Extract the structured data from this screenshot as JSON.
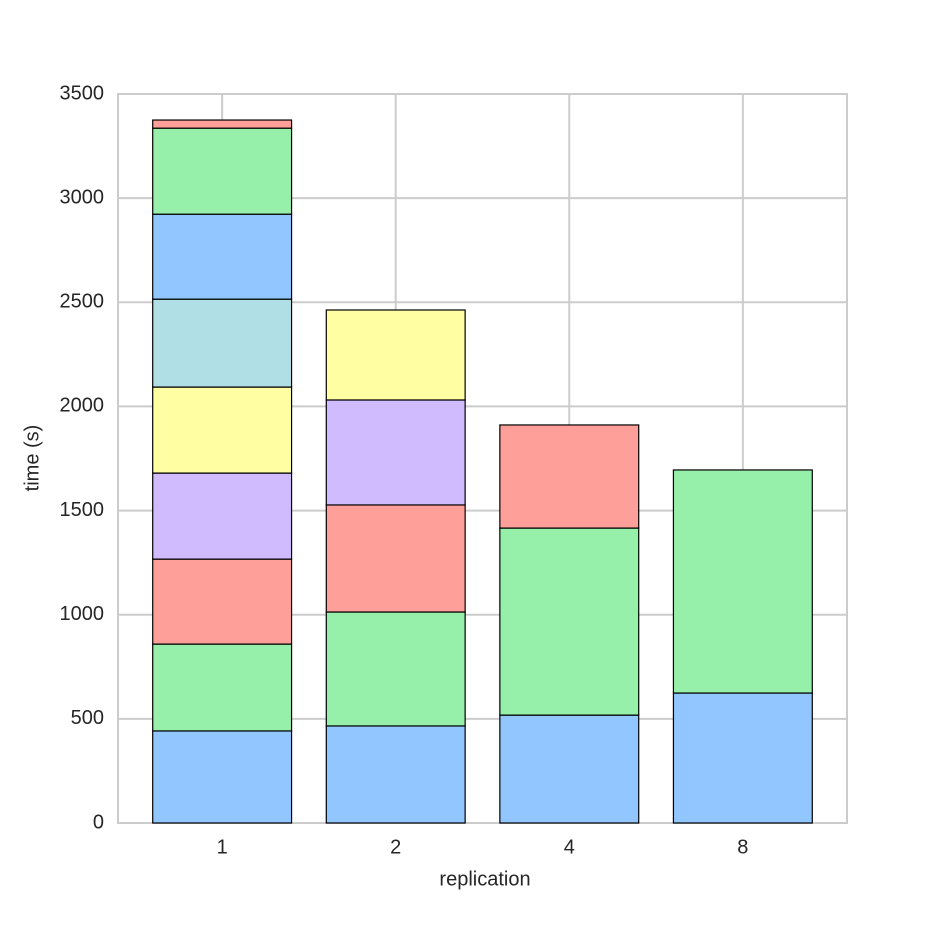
{
  "chart_data": {
    "type": "stacked_bar",
    "categories": [
      "1",
      "2",
      "4",
      "8"
    ],
    "x_label": "replication",
    "y_label": "time (s)",
    "ylim": [
      0,
      3500
    ],
    "yticks": [
      0,
      500,
      1000,
      1500,
      2000,
      2500,
      3000,
      3500
    ],
    "grid": true,
    "series": [
      {
        "color": "#92c6ff",
        "values": [
          442,
          466,
          518,
          624
        ]
      },
      {
        "color": "#97f0aa",
        "values": [
          417,
          547,
          898,
          1071
        ]
      },
      {
        "color": "#ff9f9a",
        "values": [
          408,
          514,
          495,
          null
        ]
      },
      {
        "color": "#d0bbff",
        "values": [
          413,
          504,
          null,
          null
        ]
      },
      {
        "color": "#fffea3",
        "values": [
          413,
          432,
          null,
          null
        ]
      },
      {
        "color": "#b0e0e6",
        "values": [
          422,
          null,
          null,
          null
        ]
      },
      {
        "color": "#92c6ff",
        "values": [
          408,
          null,
          null,
          null
        ]
      },
      {
        "color": "#97f0aa",
        "values": [
          413,
          null,
          null,
          null
        ]
      },
      {
        "color": "#ff9f9a",
        "values": [
          39,
          null,
          null,
          null
        ]
      }
    ]
  }
}
